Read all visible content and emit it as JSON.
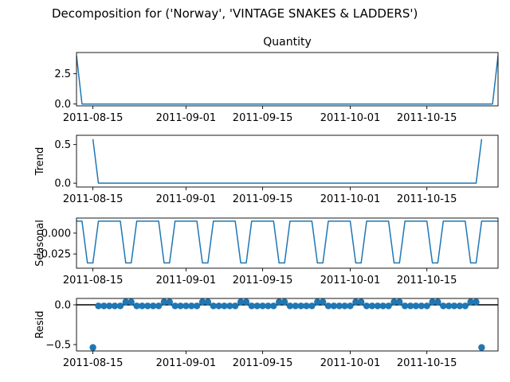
{
  "figure_title": "Decomposition for ('Norway', 'VINTAGE SNAKES & LADDERS')",
  "colors": {
    "series": "#1f77b4",
    "axis": "#000000"
  },
  "chart_data": [
    {
      "type": "line",
      "title": "Quantity",
      "ylabel": "",
      "x_start": "2011-08-12",
      "x_end": "2011-10-28",
      "x_ticks": [
        "2011-08-15",
        "2011-09-01",
        "2011-09-15",
        "2011-10-01",
        "2011-10-15"
      ],
      "ylim": [
        -0.15,
        4.25
      ],
      "y_ticks": [
        0.0,
        2.5
      ],
      "y_tick_labels": [
        "0.0",
        "2.5"
      ],
      "x": [
        "2011-08-12",
        "2011-08-13",
        "2011-10-27",
        "2011-10-28"
      ],
      "values": [
        4,
        0,
        0,
        4
      ]
    },
    {
      "type": "line",
      "ylabel": "Trend",
      "x_start": "2011-08-12",
      "x_end": "2011-10-28",
      "x_ticks": [
        "2011-08-15",
        "2011-09-01",
        "2011-09-15",
        "2011-10-01",
        "2011-10-15"
      ],
      "ylim": [
        -0.05,
        0.62
      ],
      "y_ticks": [
        0.0,
        0.5
      ],
      "y_tick_labels": [
        "0.0",
        "0.5"
      ],
      "x": [
        "2011-08-15",
        "2011-08-16",
        "2011-10-24",
        "2011-10-25"
      ],
      "values": [
        0.571,
        0,
        0,
        0.571
      ]
    },
    {
      "type": "line",
      "ylabel": "Seasonal",
      "x_start": "2011-08-12",
      "x_end": "2011-10-28",
      "x_ticks": [
        "2011-08-15",
        "2011-09-01",
        "2011-09-15",
        "2011-10-01",
        "2011-10-15"
      ],
      "ylim": [
        -0.042,
        0.018
      ],
      "y_ticks": [
        0.0,
        -0.025
      ],
      "y_tick_labels": [
        "0.000",
        "−0.025"
      ],
      "period_days": 7,
      "pattern": [
        0.0143,
        0.0143,
        -0.0357,
        -0.0357,
        0.0143,
        0.0143,
        0.0143
      ],
      "pattern_start": "2011-08-12"
    },
    {
      "type": "scatter",
      "ylabel": "Resid",
      "x_start": "2011-08-12",
      "x_end": "2011-10-28",
      "x_ticks": [
        "2011-08-15",
        "2011-09-01",
        "2011-09-15",
        "2011-10-01",
        "2011-10-15"
      ],
      "ylim": [
        -0.58,
        0.08
      ],
      "y_ticks": [
        0.0,
        -0.5
      ],
      "y_tick_labels": [
        "0.0",
        "−0.5"
      ],
      "zero_line": true,
      "points_start": "2011-08-15",
      "points_end": "2011-10-25",
      "pattern": [
        0.0357,
        -0.0143,
        -0.0143,
        -0.0143,
        -0.0143,
        -0.0143,
        0.0357
      ],
      "pattern_start": "2011-08-15",
      "overrides": [
        {
          "x": "2011-08-15",
          "y": -0.536
        },
        {
          "x": "2011-10-25",
          "y": -0.536
        }
      ]
    }
  ]
}
